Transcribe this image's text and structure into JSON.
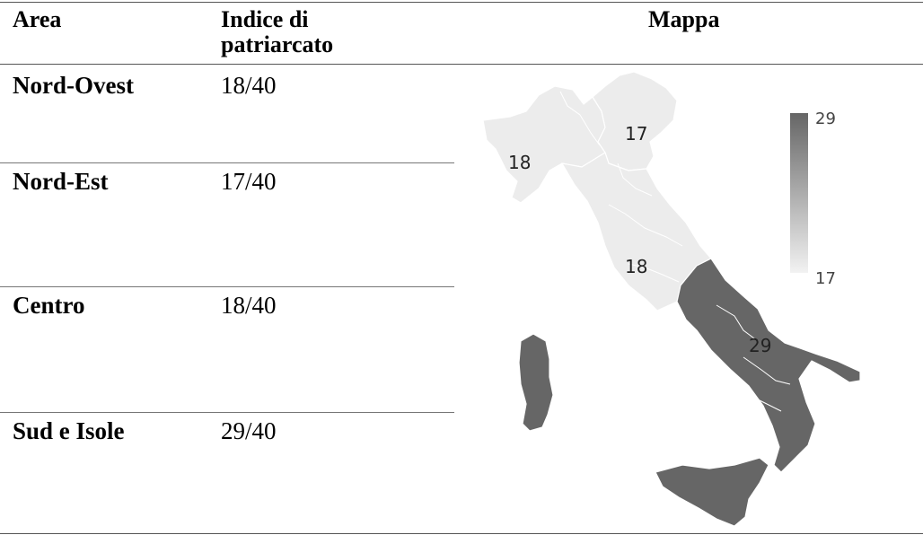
{
  "headers": {
    "area": "Area",
    "index": "Indice di\npatriarcato",
    "map": "Mappa"
  },
  "rows": [
    {
      "area": "Nord-Ovest",
      "value": "18/40"
    },
    {
      "area": "Nord-Est",
      "value": "17/40"
    },
    {
      "area": "Centro",
      "value": "18/40"
    },
    {
      "area": "Sud e Isole",
      "value": "29/40"
    }
  ],
  "map": {
    "labels": {
      "nord_ovest": "18",
      "nord_est": "17",
      "centro": "18",
      "sud": "29"
    },
    "legend": {
      "max": "29",
      "min": "17"
    },
    "colors": {
      "low": "#ececec",
      "high": "#666666",
      "border": "#ffffff"
    }
  }
}
